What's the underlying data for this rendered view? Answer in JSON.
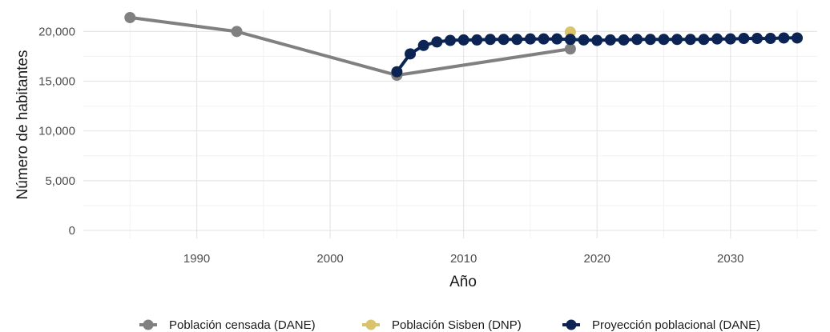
{
  "chart_data": {
    "type": "line",
    "title": "",
    "xlabel": "Año",
    "ylabel": "Número de habitantes",
    "xlim": [
      1981.5,
      2036.5
    ],
    "ylim": [
      -800,
      22200
    ],
    "x_ticks": [
      1990,
      2000,
      2010,
      2020,
      2030
    ],
    "x_tick_labels": [
      "1990",
      "2000",
      "2010",
      "2020",
      "2030"
    ],
    "y_ticks": [
      0,
      5000,
      10000,
      15000,
      20000
    ],
    "y_tick_labels": [
      "0",
      "5,000",
      "10,000",
      "15,000",
      "20,000"
    ],
    "grid": true,
    "legend_position": "bottom",
    "series": [
      {
        "name": "Población censada (DANE)",
        "color": "#808080",
        "points": [
          {
            "x": 1985,
            "y": 21400
          },
          {
            "x": 1993,
            "y": 20000
          },
          {
            "x": 2005,
            "y": 15600
          },
          {
            "x": 2018,
            "y": 18250
          }
        ]
      },
      {
        "name": "Población Sisben (DNP)",
        "color": "#d9c46b",
        "points": [
          {
            "x": 2018,
            "y": 19950
          }
        ]
      },
      {
        "name": "Proyección poblacional (DANE)",
        "color": "#0b2454",
        "points": [
          {
            "x": 2005,
            "y": 15950
          },
          {
            "x": 2006,
            "y": 17750
          },
          {
            "x": 2007,
            "y": 18600
          },
          {
            "x": 2008,
            "y": 18950
          },
          {
            "x": 2009,
            "y": 19100
          },
          {
            "x": 2010,
            "y": 19150
          },
          {
            "x": 2011,
            "y": 19150
          },
          {
            "x": 2012,
            "y": 19200
          },
          {
            "x": 2013,
            "y": 19200
          },
          {
            "x": 2014,
            "y": 19200
          },
          {
            "x": 2015,
            "y": 19250
          },
          {
            "x": 2016,
            "y": 19250
          },
          {
            "x": 2017,
            "y": 19250
          },
          {
            "x": 2018,
            "y": 19200
          },
          {
            "x": 2019,
            "y": 19150
          },
          {
            "x": 2020,
            "y": 19100
          },
          {
            "x": 2021,
            "y": 19150
          },
          {
            "x": 2022,
            "y": 19150
          },
          {
            "x": 2023,
            "y": 19200
          },
          {
            "x": 2024,
            "y": 19200
          },
          {
            "x": 2025,
            "y": 19200
          },
          {
            "x": 2026,
            "y": 19200
          },
          {
            "x": 2027,
            "y": 19200
          },
          {
            "x": 2028,
            "y": 19200
          },
          {
            "x": 2029,
            "y": 19250
          },
          {
            "x": 2030,
            "y": 19250
          },
          {
            "x": 2031,
            "y": 19300
          },
          {
            "x": 2032,
            "y": 19300
          },
          {
            "x": 2033,
            "y": 19300
          },
          {
            "x": 2034,
            "y": 19350
          },
          {
            "x": 2035,
            "y": 19350
          }
        ]
      }
    ]
  }
}
